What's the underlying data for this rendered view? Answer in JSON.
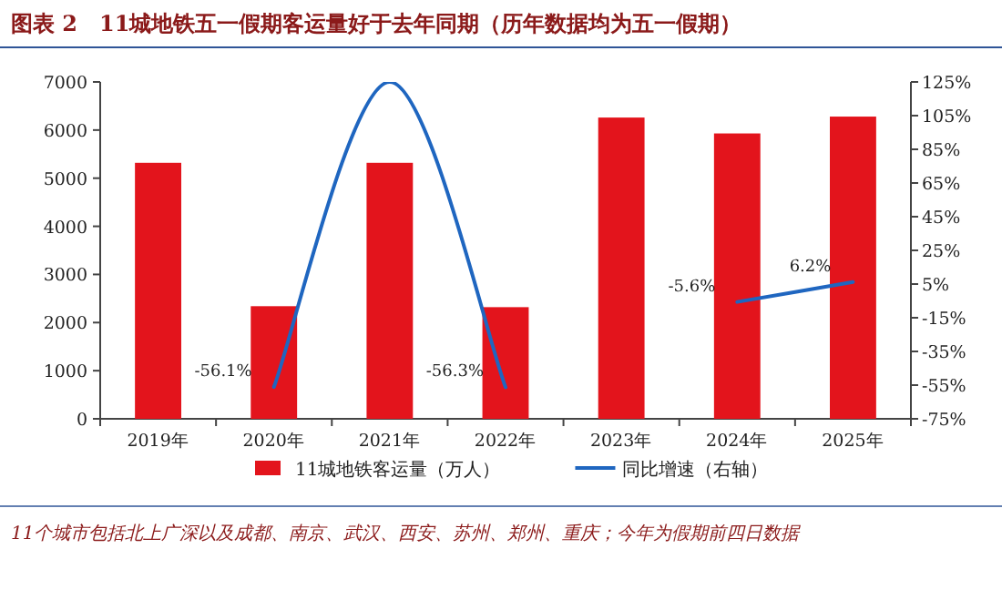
{
  "chart_data": {
    "type": "bar",
    "title": "图表 2　11城地铁五一假期客运量好于去年同期（历年数据均为五一假期）",
    "categories": [
      "2019年",
      "2020年",
      "2021年",
      "2022年",
      "2023年",
      "2024年",
      "2025年"
    ],
    "series": [
      {
        "name": "11城地铁客运量（万人）",
        "color": "#e3141c",
        "values": [
          5320,
          2340,
          5320,
          2320,
          6260,
          5930,
          6280
        ]
      },
      {
        "name": "同比增速（右轴）",
        "type": "line",
        "axis": "y2",
        "color": "#1f66c0",
        "values": [
          null,
          -56.1,
          125,
          -56.3,
          null,
          -5.6,
          6.2
        ],
        "value_labels": [
          null,
          "-56.1%",
          null,
          "-56.3%",
          null,
          "-5.6%",
          "6.2%"
        ]
      }
    ],
    "ylim": [
      0,
      7000
    ],
    "yticks": [
      0,
      1000,
      2000,
      3000,
      4000,
      5000,
      6000,
      7000
    ],
    "y2lim": [
      -75,
      125
    ],
    "y2ticks": [
      {
        "value": -75,
        "label": "-75%"
      },
      {
        "value": -55,
        "label": "-55%"
      },
      {
        "value": -35,
        "label": "-35%"
      },
      {
        "value": -15,
        "label": "-15%"
      },
      {
        "value": 5,
        "label": "5%"
      },
      {
        "value": 25,
        "label": "25%"
      },
      {
        "value": 45,
        "label": "45%"
      },
      {
        "value": 65,
        "label": "65%"
      },
      {
        "value": 85,
        "label": "85%"
      },
      {
        "value": 105,
        "label": "105%"
      },
      {
        "value": 125,
        "label": "125%"
      }
    ],
    "legend": "bottom",
    "annotations": [
      "11个城市包括北上广深以及成都、南京、武汉、西安、苏州、郑州、重庆；今年为假期前四日数据"
    ]
  }
}
